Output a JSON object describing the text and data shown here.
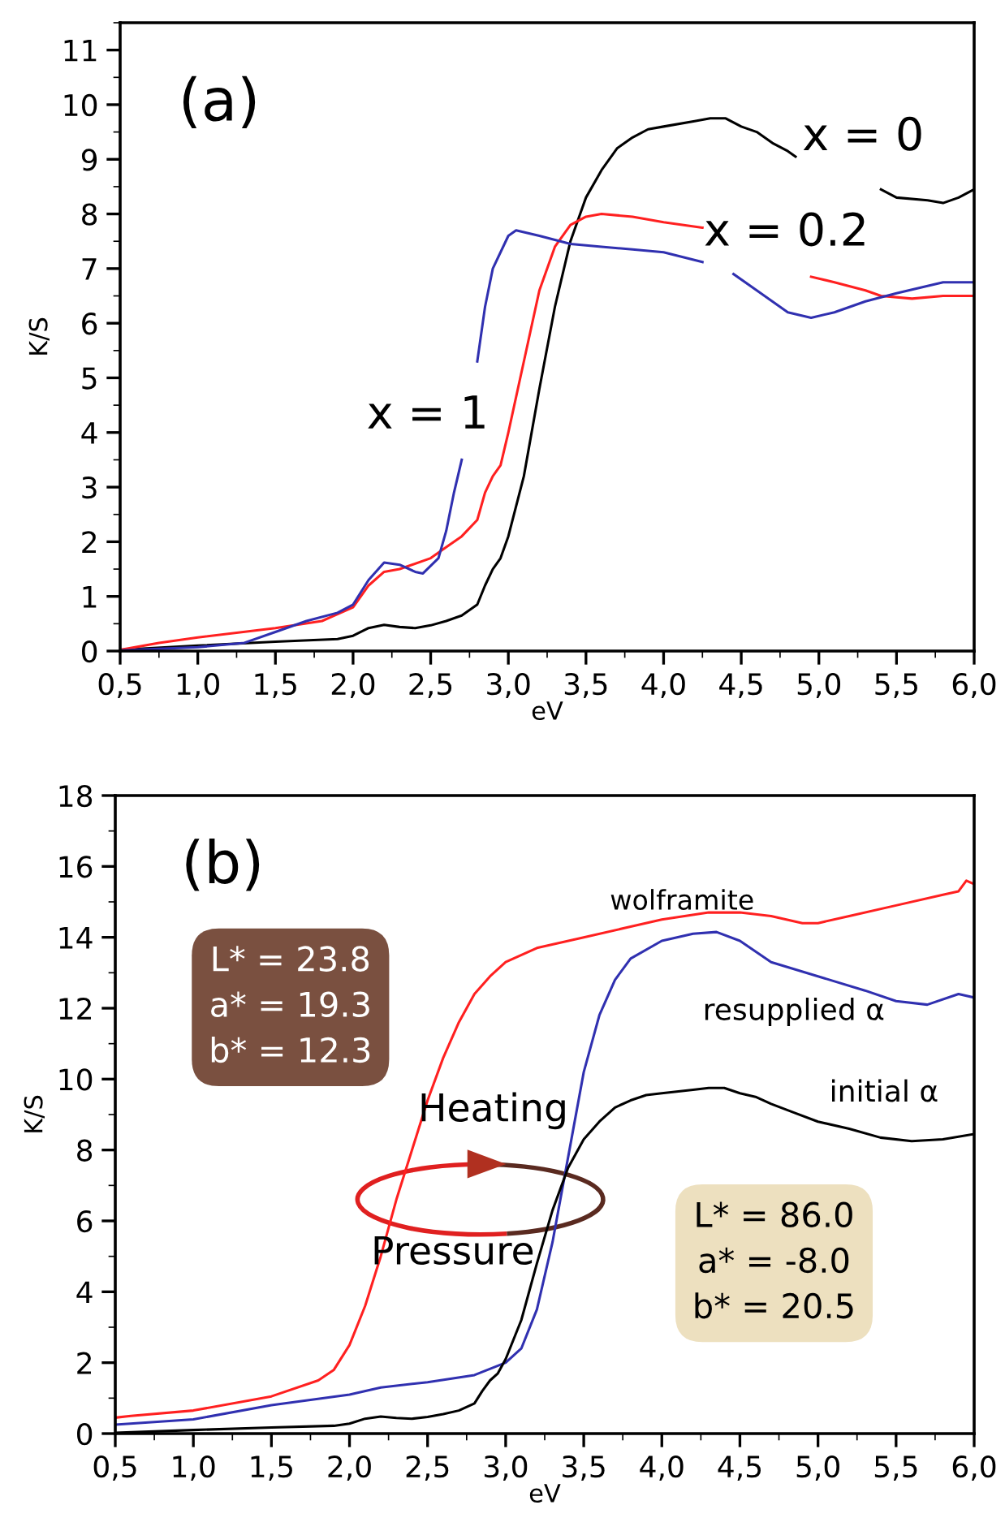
{
  "chart_data": [
    {
      "type": "line",
      "xlabel": "eV",
      "ylabel": "K/S",
      "xlim": [
        0.5,
        6.0
      ],
      "ylim": [
        0,
        11.5
      ],
      "xticks": [
        {
          "value": 0.5,
          "label": "0,5"
        },
        {
          "value": 1.0,
          "label": "1,0"
        },
        {
          "value": 1.5,
          "label": "1,5"
        },
        {
          "value": 2.0,
          "label": "2,0"
        },
        {
          "value": 2.5,
          "label": "2,5"
        },
        {
          "value": 3.0,
          "label": "3,0"
        },
        {
          "value": 3.5,
          "label": "3,5"
        },
        {
          "value": 4.0,
          "label": "4,0"
        },
        {
          "value": 4.5,
          "label": "4,5"
        },
        {
          "value": 5.0,
          "label": "5,0"
        },
        {
          "value": 5.5,
          "label": "5,5"
        },
        {
          "value": 6.0,
          "label": "6,0"
        }
      ],
      "yticks": [
        0,
        1,
        2,
        3,
        4,
        5,
        6,
        7,
        8,
        9,
        10,
        11
      ],
      "series": [
        {
          "name": "x = 0",
          "color": "#000000",
          "x": [
            0.5,
            1.0,
            1.5,
            1.9,
            2.0,
            2.1,
            2.2,
            2.3,
            2.4,
            2.5,
            2.6,
            2.7,
            2.8,
            2.85,
            2.9,
            2.95,
            3.0,
            3.1,
            3.2,
            3.3,
            3.4,
            3.5,
            3.6,
            3.7,
            3.8,
            3.9,
            4.0,
            4.2,
            4.3,
            4.4,
            4.5,
            4.6,
            4.7,
            4.8,
            4.85,
            5.1,
            5.4,
            5.5,
            5.7,
            5.8,
            5.9,
            6.0
          ],
          "values": [
            0.02,
            0.1,
            0.17,
            0.22,
            0.28,
            0.42,
            0.48,
            0.44,
            0.42,
            0.47,
            0.55,
            0.65,
            0.85,
            1.2,
            1.5,
            1.7,
            2.1,
            3.2,
            4.8,
            6.3,
            7.5,
            8.3,
            8.8,
            9.2,
            9.4,
            9.55,
            9.6,
            9.7,
            9.75,
            9.75,
            9.6,
            9.5,
            9.3,
            9.15,
            9.05,
            null,
            8.45,
            8.3,
            8.25,
            8.2,
            8.3,
            8.45
          ]
        },
        {
          "name": "x = 0.2",
          "color": "#ff2020",
          "x": [
            0.5,
            0.75,
            1.0,
            1.5,
            1.8,
            2.0,
            2.1,
            2.2,
            2.3,
            2.5,
            2.6,
            2.7,
            2.8,
            2.85,
            2.9,
            2.95,
            3.0,
            3.1,
            3.2,
            3.3,
            3.4,
            3.5,
            3.6,
            3.8,
            4.0,
            4.25,
            4.6,
            4.95,
            5.1,
            5.3,
            5.4,
            5.6,
            5.8,
            6.0
          ],
          "values": [
            0.02,
            0.15,
            0.25,
            0.42,
            0.55,
            0.8,
            1.2,
            1.45,
            1.5,
            1.7,
            1.9,
            2.1,
            2.4,
            2.9,
            3.2,
            3.4,
            4.0,
            5.3,
            6.6,
            7.4,
            7.8,
            7.95,
            8.0,
            7.95,
            7.85,
            7.75,
            null,
            6.85,
            6.75,
            6.6,
            6.5,
            6.45,
            6.5,
            6.5
          ]
        },
        {
          "name": "x = 1",
          "color": "#3030b0",
          "x": [
            0.5,
            1.0,
            1.3,
            1.5,
            1.7,
            1.9,
            2.0,
            2.1,
            2.2,
            2.3,
            2.4,
            2.45,
            2.55,
            2.6,
            2.65,
            2.7,
            2.75,
            2.8,
            2.85,
            2.9,
            3.0,
            3.05,
            3.2,
            3.4,
            3.6,
            3.8,
            4.0,
            4.25,
            4.35,
            4.45,
            4.6,
            4.8,
            4.95,
            5.1,
            5.3,
            5.5,
            5.8,
            6.0
          ],
          "values": [
            0.01,
            0.07,
            0.15,
            0.35,
            0.55,
            0.7,
            0.85,
            1.3,
            1.62,
            1.58,
            1.45,
            1.42,
            1.7,
            2.2,
            2.9,
            3.5,
            null,
            5.3,
            6.3,
            7.0,
            7.6,
            7.7,
            7.6,
            7.45,
            7.4,
            7.35,
            7.3,
            7.12,
            null,
            6.9,
            6.6,
            6.2,
            6.1,
            6.2,
            6.4,
            6.55,
            6.75,
            6.75
          ]
        }
      ],
      "annotations": [
        "(a)"
      ]
    },
    {
      "type": "line",
      "xlabel": "eV",
      "ylabel": "K/S",
      "xlim": [
        0.5,
        6.0
      ],
      "ylim": [
        0,
        18
      ],
      "xticks": [
        {
          "value": 0.5,
          "label": "0,5"
        },
        {
          "value": 1.0,
          "label": "1,0"
        },
        {
          "value": 1.5,
          "label": "1,5"
        },
        {
          "value": 2.0,
          "label": "2,0"
        },
        {
          "value": 2.5,
          "label": "2,5"
        },
        {
          "value": 3.0,
          "label": "3,0"
        },
        {
          "value": 3.5,
          "label": "3,5"
        },
        {
          "value": 4.0,
          "label": "4,0"
        },
        {
          "value": 4.5,
          "label": "4,5"
        },
        {
          "value": 5.0,
          "label": "5,0"
        },
        {
          "value": 5.5,
          "label": "5,5"
        },
        {
          "value": 6.0,
          "label": "6,0"
        }
      ],
      "yticks": [
        0,
        2,
        4,
        6,
        8,
        10,
        12,
        14,
        16,
        18
      ],
      "series": [
        {
          "name": "wolframite",
          "color": "#ff2020",
          "x": [
            0.5,
            0.6,
            1.0,
            1.5,
            1.8,
            1.9,
            2.0,
            2.1,
            2.2,
            2.3,
            2.4,
            2.5,
            2.6,
            2.7,
            2.8,
            2.9,
            3.0,
            3.2,
            3.5,
            3.8,
            4.0,
            4.3,
            4.5,
            4.7,
            4.9,
            5.0,
            5.2,
            5.5,
            5.8,
            5.9,
            5.95,
            6.0
          ],
          "values": [
            0.45,
            0.5,
            0.65,
            1.05,
            1.5,
            1.8,
            2.5,
            3.6,
            5.0,
            6.6,
            8.0,
            9.4,
            10.6,
            11.6,
            12.4,
            12.9,
            13.3,
            13.7,
            14.0,
            14.3,
            14.5,
            14.7,
            14.7,
            14.6,
            14.4,
            14.4,
            14.6,
            14.9,
            15.2,
            15.3,
            15.6,
            15.5
          ]
        },
        {
          "name": "resupplied α",
          "color": "#3030b0",
          "x": [
            0.5,
            1.0,
            1.5,
            2.0,
            2.2,
            2.5,
            2.8,
            3.0,
            3.1,
            3.2,
            3.3,
            3.4,
            3.5,
            3.6,
            3.7,
            3.8,
            4.0,
            4.2,
            4.35,
            4.5,
            4.7,
            5.0,
            5.3,
            5.5,
            5.7,
            5.9,
            6.0
          ],
          "values": [
            0.25,
            0.4,
            0.8,
            1.1,
            1.3,
            1.45,
            1.65,
            2.0,
            2.4,
            3.5,
            5.4,
            7.8,
            10.2,
            11.8,
            12.8,
            13.4,
            13.9,
            14.1,
            14.15,
            13.9,
            13.3,
            12.9,
            12.5,
            12.2,
            12.1,
            12.4,
            12.3
          ]
        },
        {
          "name": "initial α",
          "color": "#000000",
          "x": [
            0.5,
            1.0,
            1.5,
            1.9,
            2.0,
            2.1,
            2.2,
            2.3,
            2.4,
            2.5,
            2.6,
            2.7,
            2.8,
            2.85,
            2.9,
            2.95,
            3.0,
            3.1,
            3.2,
            3.3,
            3.4,
            3.5,
            3.6,
            3.7,
            3.8,
            3.9,
            4.0,
            4.2,
            4.3,
            4.4,
            4.5,
            4.6,
            4.7,
            4.85,
            5.0,
            5.2,
            5.4,
            5.6,
            5.8,
            6.0
          ],
          "values": [
            0.02,
            0.1,
            0.17,
            0.22,
            0.28,
            0.42,
            0.48,
            0.44,
            0.42,
            0.47,
            0.55,
            0.65,
            0.85,
            1.2,
            1.5,
            1.7,
            2.1,
            3.2,
            4.8,
            6.3,
            7.5,
            8.3,
            8.8,
            9.2,
            9.4,
            9.55,
            9.6,
            9.7,
            9.75,
            9.75,
            9.6,
            9.5,
            9.3,
            9.05,
            8.8,
            8.6,
            8.35,
            8.25,
            8.3,
            8.45
          ]
        }
      ],
      "annotations": [
        "(b)",
        "L* = 23.8\na* = 19.3\nb* = 12.3",
        "L* = 86.0\na* = -8.0\nb* = 20.5",
        "Heating",
        "Pressure"
      ]
    }
  ]
}
